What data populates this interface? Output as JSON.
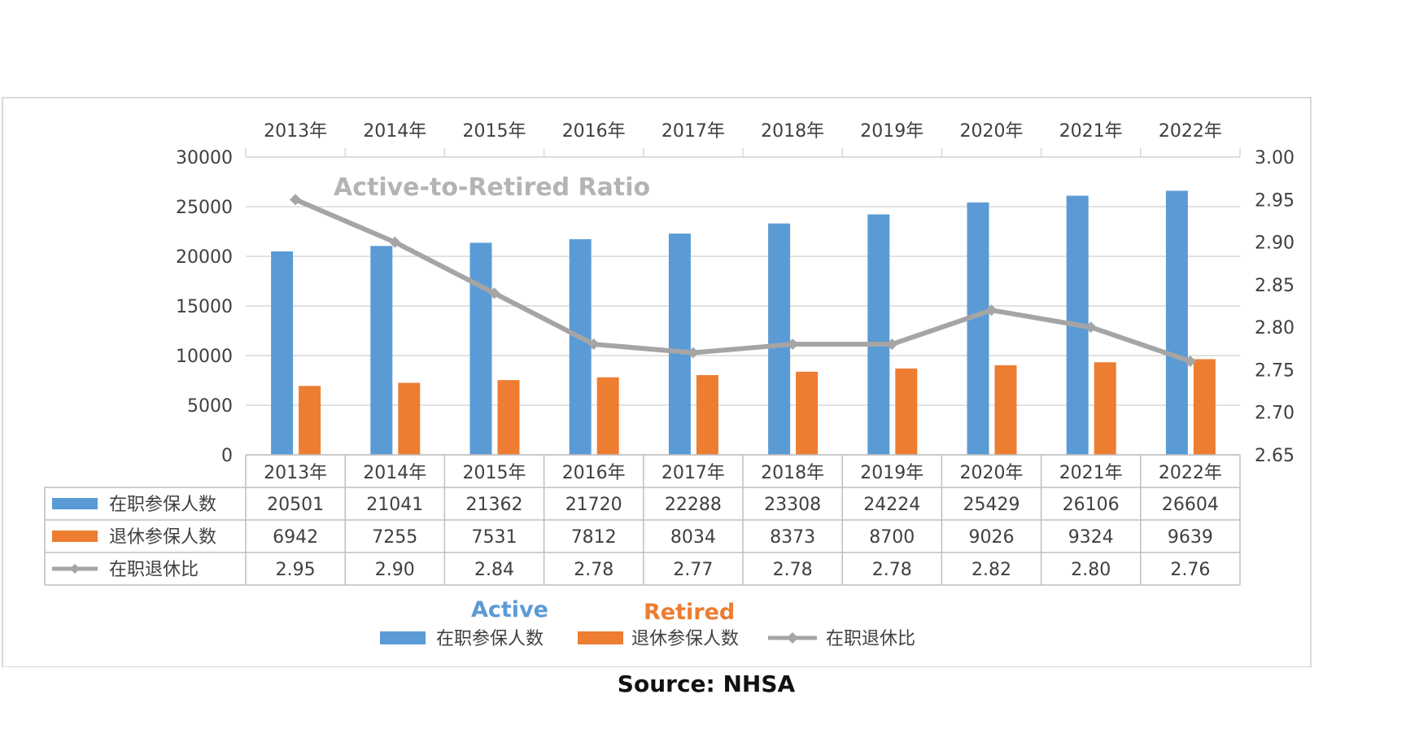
{
  "chart_data": {
    "type": "bar",
    "title": "",
    "overlay_title": "Active-to-Retired Ratio",
    "categories": [
      "2013年",
      "2014年",
      "2015年",
      "2016年",
      "2017年",
      "2018年",
      "2019年",
      "2020年",
      "2021年",
      "2022年"
    ],
    "series": [
      {
        "name": "在职参保人数",
        "type": "bar",
        "axis": "left",
        "color": "#5b9bd5",
        "values": [
          20501,
          21041,
          21362,
          21720,
          22288,
          23308,
          24224,
          25429,
          26106,
          26604
        ]
      },
      {
        "name": "退休参保人数",
        "type": "bar",
        "axis": "left",
        "color": "#ed7d31",
        "values": [
          6942,
          7255,
          7531,
          7812,
          8034,
          8373,
          8700,
          9026,
          9324,
          9639
        ]
      },
      {
        "name": "在职退休比",
        "type": "line",
        "axis": "right",
        "color": "#a5a5a5",
        "values": [
          2.95,
          2.9,
          2.84,
          2.78,
          2.77,
          2.78,
          2.78,
          2.82,
          2.8,
          2.76
        ]
      }
    ],
    "y_left": {
      "ylim": [
        0,
        30000
      ],
      "ticks": [
        "0",
        "5000",
        "10000",
        "15000",
        "20000",
        "25000",
        "30000"
      ]
    },
    "y_right": {
      "ylim": [
        2.65,
        3.0
      ],
      "ticks": [
        "2.65",
        "2.70",
        "2.75",
        "2.80",
        "2.85",
        "2.90",
        "2.95",
        "3.00"
      ]
    },
    "table_values": [
      [
        "20501",
        "21041",
        "21362",
        "21720",
        "22288",
        "23308",
        "24224",
        "25429",
        "26106",
        "26604"
      ],
      [
        "6942",
        "7255",
        "7531",
        "7812",
        "8034",
        "8373",
        "8700",
        "9026",
        "9324",
        "9639"
      ],
      [
        "2.95",
        "2.90",
        "2.84",
        "2.78",
        "2.77",
        "2.78",
        "2.78",
        "2.82",
        "2.80",
        "2.76"
      ]
    ],
    "legend": {
      "position": "bottom",
      "entries": [
        "在职参保人数",
        "退休参保人数",
        "在职退休比"
      ]
    },
    "annotations": {
      "active": "Active",
      "retired": "Retired"
    },
    "grid": true
  },
  "source": "Source: NHSA"
}
